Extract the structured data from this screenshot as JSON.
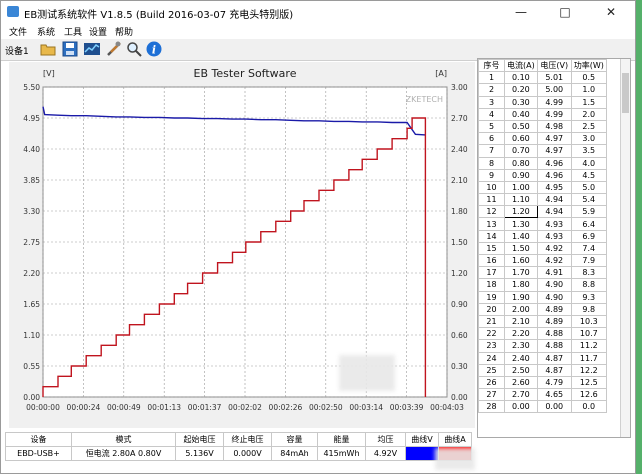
{
  "window": {
    "title": "EB测试系统软件 V1.8.5 (Build 2016-03-07 充电头特别版)",
    "minimize_icon": "minimize-icon",
    "maximize_icon": "maximize-icon",
    "close_icon": "close-icon"
  },
  "menu": {
    "items": [
      "文件",
      "系统",
      "工具",
      "设置",
      "帮助"
    ]
  },
  "toolbar": {
    "device_label": "设备1",
    "buttons": [
      "open-folder-icon",
      "save-icon",
      "chart-icon",
      "tools-icon",
      "search-icon",
      "info-icon"
    ]
  },
  "chart_data": {
    "type": "line",
    "title": "EB Tester Software",
    "watermark": "ZKETECH",
    "left_axis_unit": "[V]",
    "right_axis_unit": "[A]",
    "ylim_left": [
      0,
      5.5
    ],
    "ylim_right": [
      0,
      3.0
    ],
    "left_ticks": [
      "5.50",
      "4.95",
      "4.40",
      "3.85",
      "3.30",
      "2.75",
      "2.20",
      "1.65",
      "1.10",
      "0.55",
      "0.00"
    ],
    "right_ticks": [
      "3.00",
      "2.70",
      "2.40",
      "2.10",
      "1.80",
      "1.50",
      "1.20",
      "0.90",
      "0.60",
      "0.30",
      "0.00"
    ],
    "x_ticks": [
      "00:00:00",
      "00:00:24",
      "00:00:49",
      "00:01:13",
      "00:01:37",
      "00:02:02",
      "00:02:26",
      "00:02:50",
      "00:03:14",
      "00:03:39",
      "00:04:03"
    ],
    "xlim_seconds": [
      0,
      243
    ],
    "grid": true,
    "series": [
      {
        "axis": "left",
        "color": "#1a1aa8",
        "points": [
          [
            0,
            5.15
          ],
          [
            1,
            5.01
          ],
          [
            9,
            5.0
          ],
          [
            17,
            4.99
          ],
          [
            26,
            4.99
          ],
          [
            35,
            4.98
          ],
          [
            44,
            4.97
          ],
          [
            52,
            4.97
          ],
          [
            61,
            4.96
          ],
          [
            70,
            4.96
          ],
          [
            79,
            4.95
          ],
          [
            87,
            4.95
          ],
          [
            96,
            4.94
          ],
          [
            105,
            4.94
          ],
          [
            114,
            4.93
          ],
          [
            122,
            4.93
          ],
          [
            131,
            4.92
          ],
          [
            140,
            4.92
          ],
          [
            149,
            4.91
          ],
          [
            157,
            4.9
          ],
          [
            166,
            4.9
          ],
          [
            175,
            4.89
          ],
          [
            184,
            4.89
          ],
          [
            192,
            4.88
          ],
          [
            201,
            4.88
          ],
          [
            210,
            4.87
          ],
          [
            219,
            4.87
          ],
          [
            224,
            4.66
          ],
          [
            230,
            4.65
          ]
        ]
      },
      {
        "axis": "right",
        "color": "#c0141e",
        "steps": [
          [
            0,
            0.1
          ],
          [
            9,
            0.2
          ],
          [
            17,
            0.3
          ],
          [
            26,
            0.4
          ],
          [
            35,
            0.5
          ],
          [
            44,
            0.6
          ],
          [
            52,
            0.7
          ],
          [
            61,
            0.8
          ],
          [
            70,
            0.9
          ],
          [
            79,
            1.0
          ],
          [
            87,
            1.1
          ],
          [
            96,
            1.2
          ],
          [
            105,
            1.3
          ],
          [
            114,
            1.4
          ],
          [
            122,
            1.5
          ],
          [
            131,
            1.6
          ],
          [
            140,
            1.7
          ],
          [
            149,
            1.8
          ],
          [
            157,
            1.9
          ],
          [
            166,
            2.0
          ],
          [
            175,
            2.1
          ],
          [
            184,
            2.2
          ],
          [
            192,
            2.3
          ],
          [
            201,
            2.4
          ],
          [
            210,
            2.5
          ],
          [
            219,
            2.6
          ],
          [
            222,
            2.7
          ]
        ],
        "end_x": 230
      }
    ]
  },
  "table": {
    "headers": [
      "序号",
      "电流(A)",
      "电压(V)",
      "功率(W)"
    ],
    "rows": [
      [
        "1",
        "0.10",
        "5.01",
        "0.5"
      ],
      [
        "2",
        "0.20",
        "5.00",
        "1.0"
      ],
      [
        "3",
        "0.30",
        "4.99",
        "1.5"
      ],
      [
        "4",
        "0.40",
        "4.99",
        "2.0"
      ],
      [
        "5",
        "0.50",
        "4.98",
        "2.5"
      ],
      [
        "6",
        "0.60",
        "4.97",
        "3.0"
      ],
      [
        "7",
        "0.70",
        "4.97",
        "3.5"
      ],
      [
        "8",
        "0.80",
        "4.96",
        "4.0"
      ],
      [
        "9",
        "0.90",
        "4.96",
        "4.5"
      ],
      [
        "10",
        "1.00",
        "4.95",
        "5.0"
      ],
      [
        "11",
        "1.10",
        "4.94",
        "5.4"
      ],
      [
        "12",
        "1.20",
        "4.94",
        "5.9"
      ],
      [
        "13",
        "1.30",
        "4.93",
        "6.4"
      ],
      [
        "14",
        "1.40",
        "4.93",
        "6.9"
      ],
      [
        "15",
        "1.50",
        "4.92",
        "7.4"
      ],
      [
        "16",
        "1.60",
        "4.92",
        "7.9"
      ],
      [
        "17",
        "1.70",
        "4.91",
        "8.3"
      ],
      [
        "18",
        "1.80",
        "4.90",
        "8.8"
      ],
      [
        "19",
        "1.90",
        "4.90",
        "9.3"
      ],
      [
        "20",
        "2.00",
        "4.89",
        "9.8"
      ],
      [
        "21",
        "2.10",
        "4.89",
        "10.3"
      ],
      [
        "22",
        "2.20",
        "4.88",
        "10.7"
      ],
      [
        "23",
        "2.30",
        "4.88",
        "11.2"
      ],
      [
        "24",
        "2.40",
        "4.87",
        "11.7"
      ],
      [
        "25",
        "2.50",
        "4.87",
        "12.2"
      ],
      [
        "26",
        "2.60",
        "4.79",
        "12.5"
      ],
      [
        "27",
        "2.70",
        "4.65",
        "12.6"
      ],
      [
        "28",
        "0.00",
        "0.00",
        "0.0"
      ]
    ],
    "selected_row": 11
  },
  "status": {
    "headers": [
      "设备",
      "模式",
      "起始电压",
      "终止电压",
      "容量",
      "能量",
      "均压",
      "曲线V",
      "曲线A"
    ],
    "values": [
      "EBD-USB+",
      "恒电流 2.80A 0.80V",
      "5.136V",
      "0.000V",
      "84mAh",
      "415mWh",
      "4.92V",
      "",
      ""
    ],
    "curve_v_color": "#0000ff",
    "curve_a_color": "#ff0000"
  }
}
